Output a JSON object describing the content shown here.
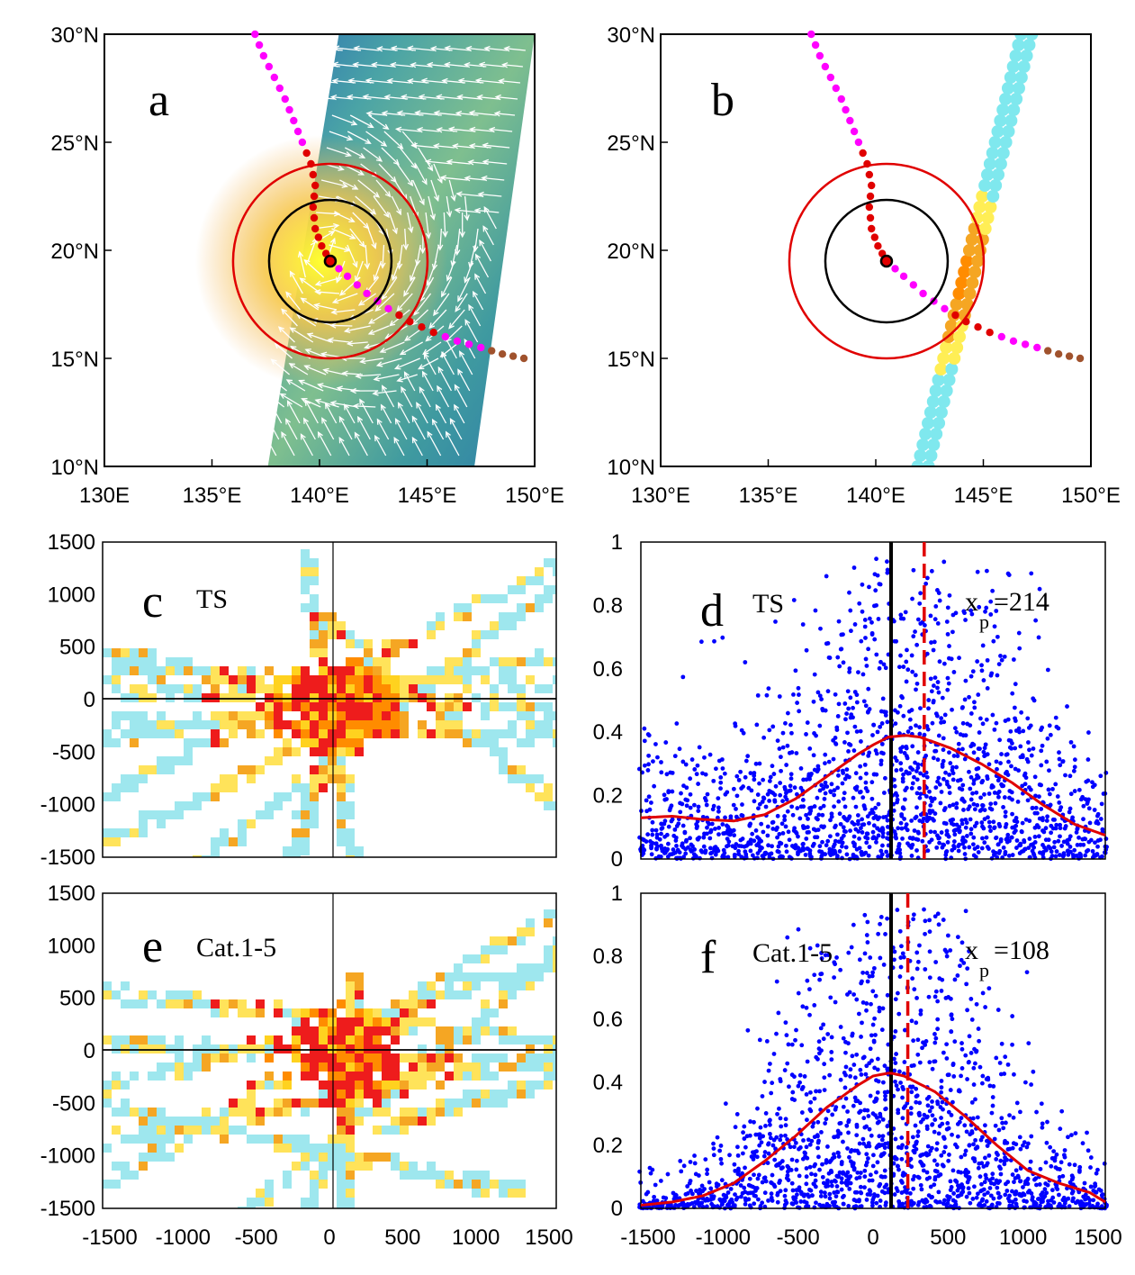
{
  "colors": {
    "track_weak": "#ff00ff",
    "track_strong": "#e00000",
    "track_landfall": "#a0522d",
    "outer_circle": "#e00000",
    "inner_circle": "#000000",
    "scatter": "#0000ff",
    "fit_curve": "#e00000",
    "peak_line": "#e00000"
  },
  "chart_data": [
    {
      "panel": "a",
      "type": "scatter",
      "label": "a",
      "x_ticks": [
        "130E",
        "135°E",
        "140°E",
        "145°E",
        "150°E"
      ],
      "y_ticks": [
        "10°N",
        "15°N",
        "20°N",
        "25°N",
        "30°N"
      ],
      "xlim": [
        130,
        150
      ],
      "ylim": [
        10,
        30
      ],
      "storm_center": {
        "lon": 140.5,
        "lat": 19.5
      },
      "track": [
        {
          "lon": 137.0,
          "lat": 30.0,
          "c": "weak"
        },
        {
          "lon": 137.4,
          "lat": 29.0,
          "c": "weak"
        },
        {
          "lon": 137.9,
          "lat": 28.0,
          "c": "weak"
        },
        {
          "lon": 138.4,
          "lat": 27.0,
          "c": "weak"
        },
        {
          "lon": 138.8,
          "lat": 26.0,
          "c": "weak"
        },
        {
          "lon": 139.2,
          "lat": 25.0,
          "c": "weak"
        },
        {
          "lon": 139.6,
          "lat": 24.0,
          "c": "strong"
        },
        {
          "lon": 139.8,
          "lat": 23.0,
          "c": "strong"
        },
        {
          "lon": 139.7,
          "lat": 22.0,
          "c": "strong"
        },
        {
          "lon": 139.8,
          "lat": 21.0,
          "c": "strong"
        },
        {
          "lon": 140.1,
          "lat": 20.2,
          "c": "strong"
        },
        {
          "lon": 140.5,
          "lat": 19.5,
          "c": "strong"
        },
        {
          "lon": 141.3,
          "lat": 18.8,
          "c": "weak"
        },
        {
          "lon": 142.2,
          "lat": 18.0,
          "c": "weak"
        },
        {
          "lon": 143.2,
          "lat": 17.3,
          "c": "weak"
        },
        {
          "lon": 144.2,
          "lat": 16.7,
          "c": "strong"
        },
        {
          "lon": 145.3,
          "lat": 16.2,
          "c": "strong"
        },
        {
          "lon": 146.4,
          "lat": 15.8,
          "c": "weak"
        },
        {
          "lon": 147.5,
          "lat": 15.5,
          "c": "weak"
        },
        {
          "lon": 148.5,
          "lat": 15.2,
          "c": "landfall"
        },
        {
          "lon": 149.5,
          "lat": 15.0,
          "c": "landfall"
        }
      ],
      "swath_lon_range_at_lat10": [
        137.6,
        147.2
      ],
      "swath_lon_range_at_lat30": [
        140.9,
        150.0
      ]
    },
    {
      "panel": "b",
      "type": "scatter",
      "label": "b",
      "x_ticks": [
        "130°E",
        "135°E",
        "140°E",
        "145°E",
        "150°E"
      ],
      "y_ticks": [
        "10°N",
        "15°N",
        "20°N",
        "25°N",
        "30°N"
      ],
      "xlim": [
        130,
        150
      ],
      "ylim": [
        10,
        30
      ],
      "storm_center": {
        "lon": 140.5,
        "lat": 19.5
      },
      "satellite_track_start": {
        "lon": 142.2,
        "lat": 10.0
      },
      "satellite_track_end": {
        "lon": 147.0,
        "lat": 30.0
      }
    },
    {
      "panel": "c",
      "type": "heatmap",
      "label": "c",
      "category": "TS",
      "xlim": [
        -1500,
        1500
      ],
      "ylim": [
        -1500,
        1500
      ],
      "y_ticks": [
        "1500",
        "1000",
        "500",
        "0",
        "-500",
        "-1000",
        "-1500"
      ]
    },
    {
      "panel": "d",
      "type": "scatter",
      "label": "d",
      "category": "TS",
      "annotation_var": "x",
      "annotation_sub": "p",
      "annotation_value": "=214",
      "peak_x": 214,
      "xlim": [
        -1500,
        1500
      ],
      "ylim": [
        0,
        1
      ],
      "y_ticks": [
        "1",
        "0.8",
        "0.6",
        "0.4",
        "0.2",
        "0"
      ],
      "fit_curve": {
        "x": [
          -1500,
          -1300,
          -1100,
          -900,
          -700,
          -500,
          -300,
          -100,
          0,
          100,
          214,
          300,
          500,
          700,
          900,
          1100,
          1300,
          1500
        ],
        "y": [
          0.13,
          0.135,
          0.125,
          0.12,
          0.14,
          0.19,
          0.26,
          0.33,
          0.36,
          0.385,
          0.39,
          0.385,
          0.35,
          0.3,
          0.24,
          0.17,
          0.11,
          0.075
        ]
      }
    },
    {
      "panel": "e",
      "type": "heatmap",
      "label": "e",
      "category": "Cat.1-5",
      "xlim": [
        -1500,
        1500
      ],
      "ylim": [
        -1500,
        1500
      ],
      "x_ticks": [
        "-1500",
        "-1000",
        "-500",
        "0",
        "500",
        "1000",
        "1500"
      ],
      "y_ticks": [
        "1500",
        "1000",
        "500",
        "0",
        "-500",
        "-1000",
        "-1500"
      ]
    },
    {
      "panel": "f",
      "type": "scatter",
      "label": "f",
      "category": "Cat.1-5",
      "annotation_var": "x",
      "annotation_sub": "p",
      "annotation_value": "=108",
      "peak_x": 108,
      "xlim": [
        -1500,
        1500
      ],
      "ylim": [
        0,
        1
      ],
      "x_ticks": [
        "-1500",
        "-1000",
        "-500",
        "0",
        "500",
        "1000",
        "1500"
      ],
      "y_ticks": [
        "1",
        "0.8",
        "0.6",
        "0.4",
        "0.2",
        "0"
      ],
      "fit_curve": {
        "x": [
          -1500,
          -1300,
          -1100,
          -900,
          -700,
          -500,
          -300,
          -100,
          0,
          108,
          200,
          400,
          600,
          800,
          1000,
          1200,
          1400,
          1500
        ],
        "y": [
          0.01,
          0.02,
          0.04,
          0.08,
          0.15,
          0.23,
          0.32,
          0.39,
          0.42,
          0.43,
          0.42,
          0.37,
          0.29,
          0.2,
          0.12,
          0.08,
          0.05,
          0.02
        ]
      }
    }
  ]
}
